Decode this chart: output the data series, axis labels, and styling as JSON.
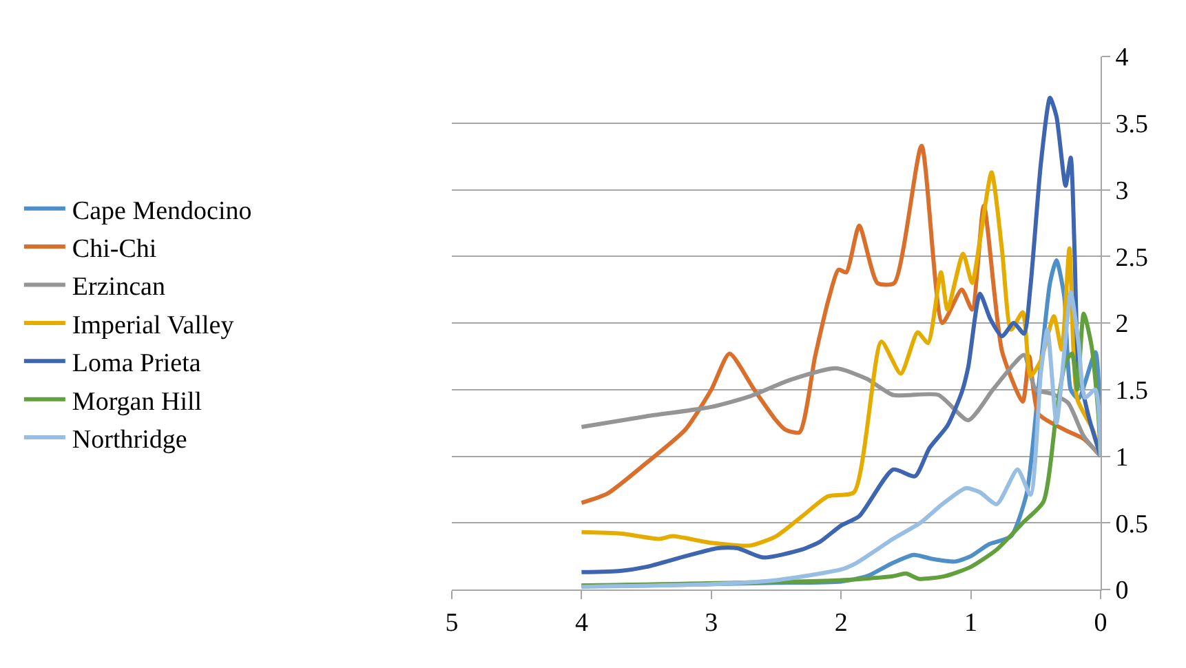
{
  "chart_data": {
    "type": "line",
    "xlim": [
      5,
      0
    ],
    "xticks": [
      5,
      4,
      3,
      2,
      1,
      0
    ],
    "ylim": [
      0,
      4
    ],
    "yticks": [
      0,
      0.5,
      1,
      1.5,
      2,
      2.5,
      3,
      3.5,
      4
    ],
    "grid": "y",
    "legend": "left",
    "marker": "none",
    "line_style": "solid",
    "series": [
      {
        "name": "Cape Mendocino",
        "color": "#4f8fc8",
        "x": [
          4,
          3.5,
          3,
          2.5,
          2.0,
          1.8,
          1.6,
          1.44,
          1.3,
          1.12,
          1.0,
          0.86,
          0.69,
          0.57,
          0.48,
          0.39,
          0.34,
          0.28,
          0.23,
          0.17,
          0.04,
          0
        ],
        "values": [
          0.03,
          0.03,
          0.04,
          0.05,
          0.06,
          0.1,
          0.2,
          0.26,
          0.23,
          0.21,
          0.25,
          0.34,
          0.4,
          0.72,
          1.5,
          2.3,
          2.47,
          2.2,
          1.5,
          1.43,
          1.78,
          1.0
        ]
      },
      {
        "name": "Chi-Chi",
        "color": "#da6f2c",
        "x": [
          4,
          3.8,
          3.5,
          3.2,
          3.0,
          2.86,
          2.67,
          2.51,
          2.43,
          2.32,
          2.2,
          2.09,
          2.02,
          1.96,
          1.86,
          1.72,
          1.59,
          1.38,
          1.22,
          1.07,
          0.99,
          0.9,
          0.76,
          0.6,
          0.55,
          0.48,
          0.28,
          0.13,
          0
        ],
        "values": [
          0.65,
          0.72,
          0.95,
          1.2,
          1.5,
          1.77,
          1.5,
          1.28,
          1.2,
          1.18,
          1.75,
          2.2,
          2.4,
          2.38,
          2.73,
          2.3,
          2.3,
          3.33,
          2.0,
          2.25,
          2.1,
          2.88,
          1.79,
          1.41,
          1.75,
          1.32,
          1.2,
          1.13,
          1.0
        ]
      },
      {
        "name": "Erzincan",
        "color": "#959595",
        "x": [
          4,
          3.5,
          3.0,
          2.7,
          2.4,
          2.04,
          1.8,
          1.6,
          1.25,
          1.02,
          0.83,
          0.67,
          0.59,
          0.5,
          0.38,
          0.25,
          0.13,
          0
        ],
        "values": [
          1.22,
          1.3,
          1.37,
          1.45,
          1.57,
          1.66,
          1.58,
          1.46,
          1.46,
          1.27,
          1.5,
          1.69,
          1.76,
          1.5,
          1.47,
          1.4,
          1.15,
          1.0
        ]
      },
      {
        "name": "Imperial Valley",
        "color": "#e5ac00",
        "x": [
          4,
          3.7,
          3.4,
          3.3,
          3.0,
          2.7,
          2.5,
          2.3,
          2.1,
          1.9,
          1.69,
          1.54,
          1.41,
          1.33,
          1.23,
          1.18,
          1.06,
          0.99,
          0.93,
          0.84,
          0.76,
          0.69,
          0.6,
          0.54,
          0.46,
          0.36,
          0.3,
          0.24,
          0.18,
          0.06,
          0
        ],
        "values": [
          0.43,
          0.42,
          0.38,
          0.4,
          0.35,
          0.33,
          0.4,
          0.55,
          0.7,
          0.73,
          1.86,
          1.62,
          1.93,
          1.85,
          2.38,
          2.1,
          2.52,
          2.3,
          2.62,
          3.13,
          2.55,
          1.95,
          2.08,
          1.6,
          1.72,
          2.05,
          1.8,
          2.56,
          1.43,
          1.2,
          1.0
        ]
      },
      {
        "name": "Loma Prieta",
        "color": "#3d65b0",
        "x": [
          4,
          3.7,
          3.5,
          3.2,
          2.95,
          2.8,
          2.6,
          2.3,
          2.16,
          2.0,
          1.86,
          1.6,
          1.43,
          1.32,
          1.18,
          1.07,
          1.02,
          0.93,
          0.85,
          0.76,
          0.67,
          0.59,
          0.54,
          0.46,
          0.39,
          0.34,
          0.27,
          0.23,
          0.2,
          0.17,
          0.09,
          0
        ],
        "values": [
          0.13,
          0.14,
          0.17,
          0.25,
          0.31,
          0.31,
          0.24,
          0.3,
          0.36,
          0.48,
          0.55,
          0.9,
          0.85,
          1.06,
          1.23,
          1.48,
          1.67,
          2.22,
          2.03,
          1.9,
          2.0,
          1.92,
          2.28,
          3.2,
          3.69,
          3.55,
          3.03,
          3.24,
          2.52,
          1.66,
          1.29,
          1.0
        ]
      },
      {
        "name": "Morgan Hill",
        "color": "#62a03e",
        "x": [
          4,
          2.0,
          1.6,
          1.5,
          1.4,
          1.2,
          1.0,
          0.8,
          0.6,
          0.44,
          0.34,
          0.27,
          0.22,
          0.18,
          0.13,
          0.07,
          0.02,
          0
        ],
        "values": [
          0.03,
          0.07,
          0.1,
          0.12,
          0.08,
          0.1,
          0.17,
          0.3,
          0.5,
          0.66,
          1.33,
          1.71,
          1.77,
          1.5,
          2.07,
          1.83,
          1.35,
          1.0
        ]
      },
      {
        "name": "Northridge",
        "color": "#98bee3",
        "x": [
          4,
          3.0,
          2.5,
          2.0,
          1.88,
          1.6,
          1.39,
          1.22,
          1.04,
          0.93,
          0.8,
          0.64,
          0.54,
          0.46,
          0.41,
          0.34,
          0.28,
          0.23,
          0.17,
          0.12,
          0.04,
          0
        ],
        "values": [
          0.02,
          0.04,
          0.07,
          0.15,
          0.2,
          0.38,
          0.5,
          0.64,
          0.76,
          0.73,
          0.64,
          0.9,
          0.71,
          1.63,
          1.95,
          1.25,
          1.78,
          2.23,
          1.85,
          1.44,
          1.5,
          1.0
        ]
      }
    ]
  }
}
